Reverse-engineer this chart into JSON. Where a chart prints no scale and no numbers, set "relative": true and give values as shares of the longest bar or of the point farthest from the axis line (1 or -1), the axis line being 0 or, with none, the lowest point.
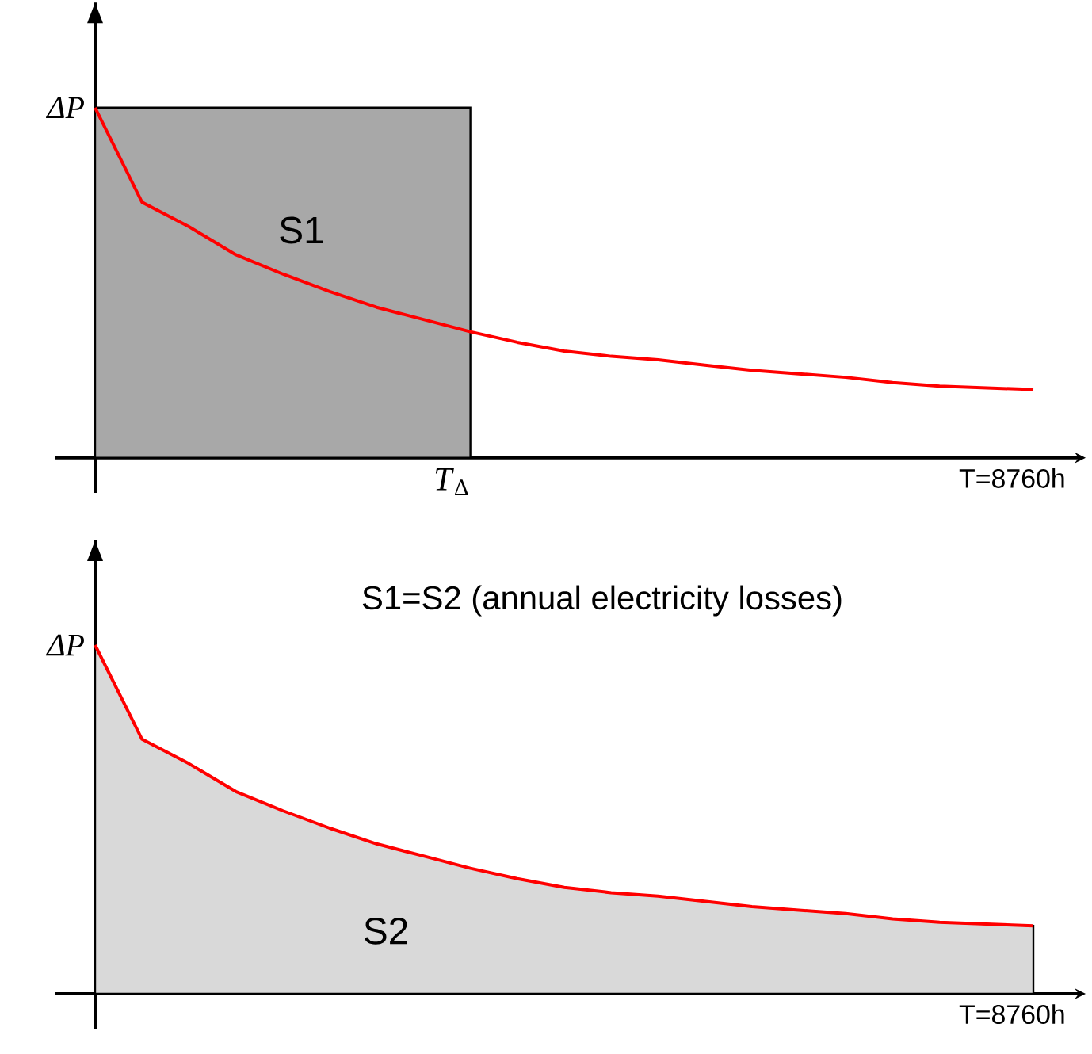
{
  "chart_data": [
    {
      "type": "area",
      "ylabel": "*ΔP*",
      "relative": true,
      "categories": [
        null,
        null,
        null,
        null,
        null,
        null,
        null,
        null,
        null,
        null,
        null,
        null,
        null,
        null,
        null,
        null,
        null,
        null,
        null,
        null,
        null
      ],
      "annotations": [
        "*T*$_{Δ}$",
        "T=8760h",
        "S1"
      ],
      "series": [
        {
          "color": "#a8a8a8",
          "values": [
            1,
            1,
            1,
            1,
            1,
            1,
            1,
            1,
            1,
            null,
            null,
            null,
            null,
            null,
            null,
            null,
            null,
            null,
            null,
            null,
            null
          ]
        },
        {
          "type": "line",
          "color": "#ff0000",
          "values": [
            1,
            0.73,
            0.66,
            0.58,
            0.525,
            0.475,
            0.43,
            0.395,
            0.36,
            0.33,
            0.305,
            0.29,
            0.28,
            0.265,
            0.25,
            0.24,
            0.23,
            0.215,
            0.205,
            0.2,
            0.195
          ]
        }
      ]
    },
    {
      "type": "area",
      "title": "S1=S2 (annual electricity losses)",
      "ylabel": "*ΔP*",
      "relative": true,
      "categories": [
        null,
        null,
        null,
        null,
        null,
        null,
        null,
        null,
        null,
        null,
        null,
        null,
        null,
        null,
        null,
        null,
        null,
        null,
        null,
        null,
        null
      ],
      "annotations": [
        "T=8760h",
        "S2"
      ],
      "series": [
        {
          "color": "#ff0000",
          "values": [
            1,
            0.73,
            0.66,
            0.58,
            0.525,
            0.475,
            0.43,
            0.395,
            0.36,
            0.33,
            0.305,
            0.29,
            0.28,
            0.265,
            0.25,
            0.24,
            0.23,
            0.215,
            0.205,
            0.2,
            0.195
          ]
        }
      ]
    }
  ]
}
